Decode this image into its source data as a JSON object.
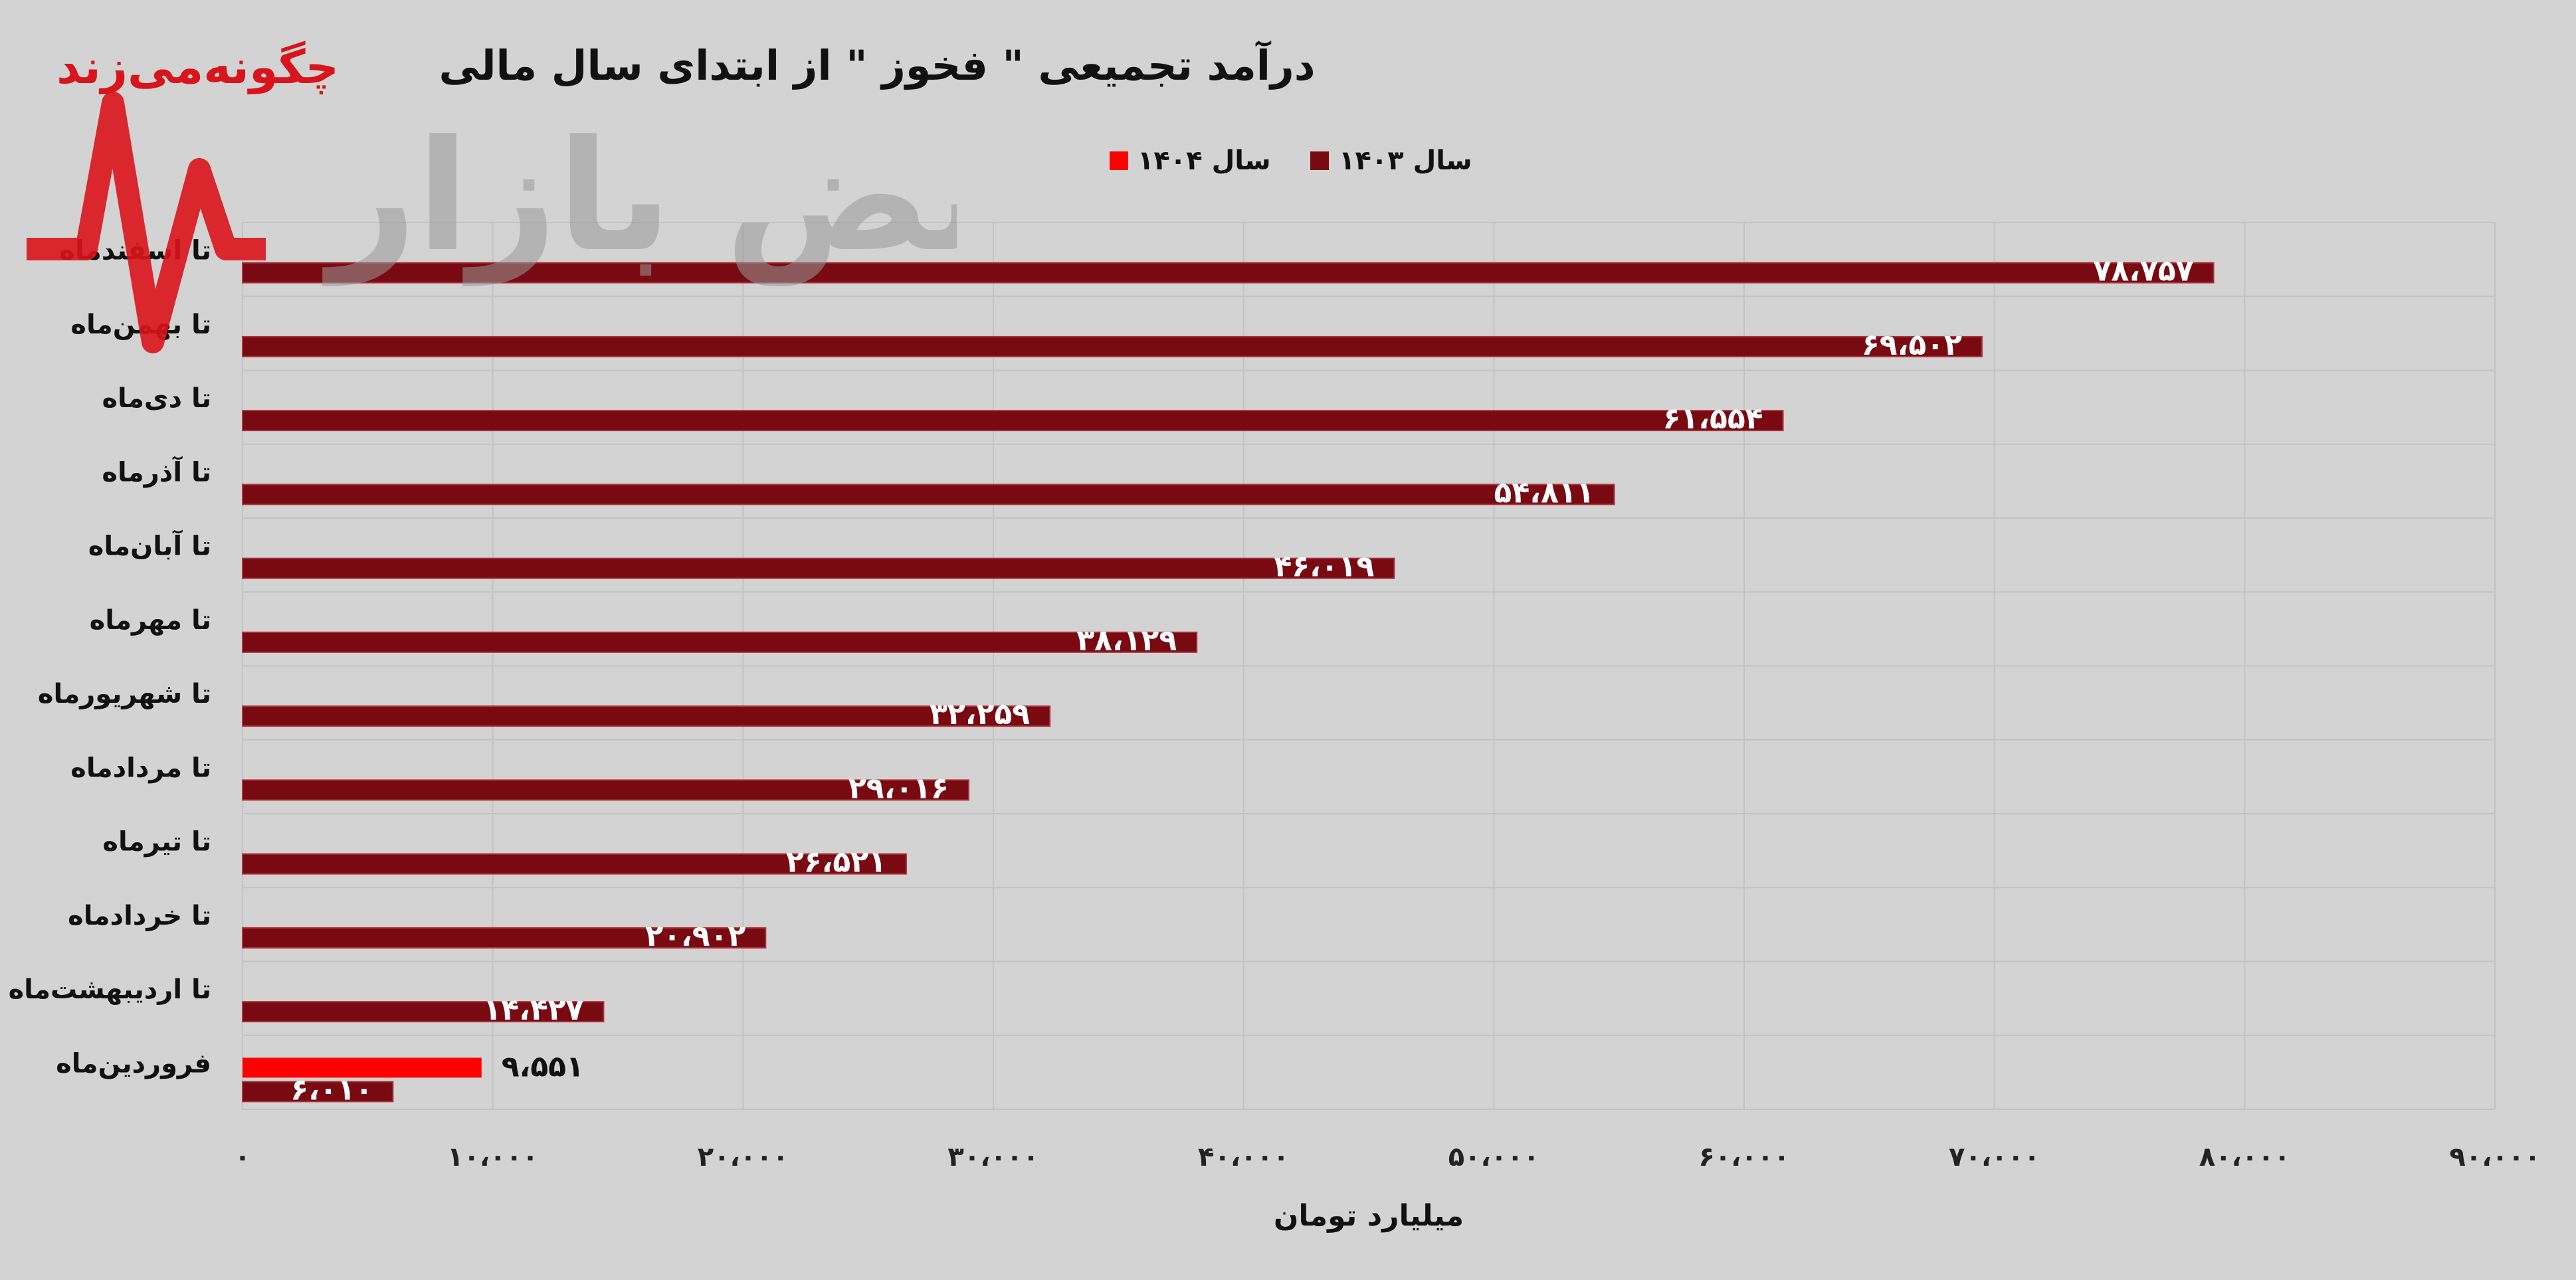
{
  "chart_data": {
    "type": "bar",
    "orientation": "horizontal",
    "title": "درآمد تجمیعی \" فخوز \" از ابتدای سال مالی",
    "xlabel": "میلیارد تومان",
    "ylabel": "",
    "xlim": [
      0,
      90000
    ],
    "grid": true,
    "legend_position": "top",
    "categories": [
      "تا اسفندماه",
      "تا بهمن‌ماه",
      "تا دی‌ماه",
      "تا آذرماه",
      "تا آبان‌ماه",
      "تا مهرماه",
      "تا شهریورماه",
      "تا مردادماه",
      "تا تیرماه",
      "تا خردادماه",
      "تا اردیبهشت‌ماه",
      "فروردین‌ماه"
    ],
    "tick_labels": [
      "۰",
      "۱۰،۰۰۰",
      "۲۰،۰۰۰",
      "۳۰،۰۰۰",
      "۴۰،۰۰۰",
      "۵۰،۰۰۰",
      "۶۰،۰۰۰",
      "۷۰،۰۰۰",
      "۸۰،۰۰۰",
      "۹۰،۰۰۰"
    ],
    "tick_values": [
      0,
      10000,
      20000,
      30000,
      40000,
      50000,
      60000,
      70000,
      80000,
      90000
    ],
    "series": [
      {
        "name": "سال ۱۴۰۳",
        "color": "#7a0a12",
        "values": [
          78757,
          69502,
          61554,
          54811,
          46019,
          38129,
          32259,
          29016,
          26521,
          20902,
          14427,
          6010
        ],
        "labels": [
          "۷۸،۷۵۷",
          "۶۹،۵۰۲",
          "۶۱،۵۵۴",
          "۵۴،۸۱۱",
          "۴۶،۰۱۹",
          "۳۸،۱۲۹",
          "۳۲،۲۵۹",
          "۲۹،۰۱۶",
          "۲۶،۵۲۱",
          "۲۰،۹۰۲",
          "۱۴،۴۲۷",
          "۶،۰۱۰"
        ]
      },
      {
        "name": "سال ۱۴۰۴",
        "color": "#ff0000",
        "values": [
          null,
          null,
          null,
          null,
          null,
          null,
          null,
          null,
          null,
          null,
          null,
          9551
        ],
        "labels": [
          "",
          "",
          "",
          "",
          "",
          "",
          "",
          "",
          "",
          "",
          "",
          "۹،۵۵۱"
        ]
      }
    ]
  },
  "watermark": {
    "tagline": "چگونه‌می‌زند",
    "logo_text": "نبض بازار"
  }
}
